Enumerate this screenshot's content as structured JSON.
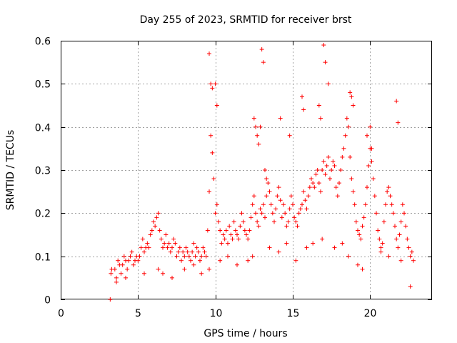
{
  "chart_data": {
    "type": "scatter",
    "title": "Day 255 of 2023, SRMTID for receiver brst",
    "xlabel": "GPS time / hours",
    "ylabel": "SRMTID / TECUs",
    "xlim": [
      0,
      24
    ],
    "ylim": [
      0,
      0.6
    ],
    "x_ticks": [
      0,
      5,
      10,
      15,
      20
    ],
    "x_tick_labels": [
      "0",
      "5",
      "10",
      "15",
      "20"
    ],
    "y_ticks": [
      0,
      0.1,
      0.2,
      0.3,
      0.4,
      0.5,
      0.6
    ],
    "y_tick_labels": [
      "0",
      "0.1",
      "0.2",
      "0.3",
      "0.4",
      "0.5",
      "0.6"
    ],
    "grid": true,
    "marker": "+",
    "color": "#ff0000",
    "series": [
      {
        "name": "SRMTID",
        "x": [
          3.2,
          3.25,
          3.3,
          3.5,
          3.6,
          3.7,
          3.8,
          3.9,
          4.0,
          4.1,
          4.2,
          4.3,
          4.4,
          4.5,
          4.6,
          4.7,
          4.8,
          4.9,
          5.0,
          5.1,
          5.2,
          5.3,
          5.4,
          5.5,
          5.6,
          5.7,
          5.8,
          5.9,
          6.0,
          6.1,
          6.2,
          6.3,
          6.4,
          6.5,
          6.6,
          6.7,
          6.8,
          6.9,
          7.0,
          7.1,
          7.2,
          7.3,
          7.4,
          7.5,
          7.6,
          7.7,
          7.8,
          7.9,
          8.0,
          8.1,
          8.2,
          8.3,
          8.4,
          8.5,
          8.6,
          8.7,
          8.8,
          8.9,
          9.0,
          9.1,
          9.2,
          9.3,
          9.4,
          9.5,
          9.6,
          9.7,
          9.8,
          9.9,
          10.0,
          10.1,
          10.2,
          10.3,
          10.4,
          10.5,
          10.6,
          10.7,
          10.8,
          10.9,
          11.0,
          11.1,
          11.2,
          11.3,
          11.4,
          11.5,
          11.6,
          11.7,
          11.8,
          11.9,
          12.0,
          12.1,
          12.2,
          12.3,
          12.4,
          12.5,
          12.6,
          12.7,
          12.8,
          12.9,
          13.0,
          13.1,
          13.2,
          13.3,
          13.4,
          13.5,
          13.6,
          13.7,
          13.8,
          13.9,
          14.0,
          14.1,
          14.2,
          14.3,
          14.4,
          14.5,
          14.6,
          14.7,
          14.8,
          14.9,
          15.0,
          15.1,
          15.2,
          15.3,
          15.4,
          15.5,
          15.6,
          15.7,
          15.8,
          15.9,
          16.0,
          16.1,
          16.2,
          16.3,
          16.4,
          16.5,
          16.6,
          16.7,
          16.8,
          16.9,
          17.0,
          17.1,
          17.2,
          17.3,
          17.4,
          17.5,
          17.6,
          17.7,
          17.8,
          17.9,
          18.0,
          18.1,
          18.2,
          18.3,
          18.4,
          18.5,
          18.6,
          18.7,
          18.8,
          18.9,
          19.0,
          19.1,
          19.2,
          19.3,
          19.4,
          19.5,
          19.6,
          19.7,
          19.8,
          19.9,
          20.0,
          20.1,
          20.2,
          20.3,
          20.4,
          20.5,
          20.6,
          20.7,
          20.8,
          20.9,
          21.0,
          21.1,
          21.2,
          21.3,
          21.4,
          21.5,
          21.6,
          21.7,
          21.8,
          21.9,
          22.0,
          22.1,
          22.2,
          22.3,
          22.4,
          22.5,
          22.6,
          22.7,
          22.8,
          9.6,
          9.7,
          9.8,
          10.0,
          10.1,
          12.5,
          12.6,
          12.7,
          12.8,
          12.9,
          13.0,
          13.1,
          14.2,
          14.8,
          15.6,
          15.7,
          16.7,
          16.8,
          17.0,
          17.1,
          17.3,
          18.7,
          18.8,
          18.9,
          19.8,
          20.0,
          20.1,
          21.7,
          21.8,
          13.2,
          13.3,
          3.6,
          4.2,
          5.4,
          6.3,
          6.6,
          7.2,
          8.0,
          8.6,
          9.1,
          9.6,
          10.3,
          10.8,
          11.4,
          12.1,
          12.4,
          13.5,
          14.1,
          14.6,
          15.2,
          15.9,
          16.3,
          16.9,
          17.7,
          18.2,
          18.6,
          19.2,
          19.5,
          20.7,
          21.2,
          22.0,
          22.6
        ],
        "y": [
          0.0,
          0.06,
          0.07,
          0.07,
          0.05,
          0.09,
          0.08,
          0.06,
          0.08,
          0.1,
          0.09,
          0.07,
          0.09,
          0.1,
          0.11,
          0.08,
          0.09,
          0.1,
          0.09,
          0.1,
          0.12,
          0.14,
          0.11,
          0.12,
          0.13,
          0.12,
          0.15,
          0.16,
          0.18,
          0.17,
          0.19,
          0.2,
          0.16,
          0.14,
          0.12,
          0.13,
          0.15,
          0.12,
          0.13,
          0.11,
          0.12,
          0.14,
          0.13,
          0.1,
          0.11,
          0.12,
          0.09,
          0.11,
          0.1,
          0.12,
          0.11,
          0.1,
          0.09,
          0.11,
          0.13,
          0.1,
          0.12,
          0.11,
          0.09,
          0.1,
          0.12,
          0.11,
          0.1,
          0.16,
          0.25,
          0.38,
          0.34,
          0.28,
          0.2,
          0.22,
          0.18,
          0.16,
          0.13,
          0.15,
          0.14,
          0.16,
          0.13,
          0.17,
          0.15,
          0.14,
          0.18,
          0.16,
          0.15,
          0.14,
          0.17,
          0.2,
          0.18,
          0.16,
          0.15,
          0.14,
          0.16,
          0.19,
          0.22,
          0.24,
          0.2,
          0.18,
          0.17,
          0.21,
          0.2,
          0.22,
          0.19,
          0.24,
          0.27,
          0.25,
          0.22,
          0.2,
          0.18,
          0.21,
          0.24,
          0.26,
          0.23,
          0.19,
          0.22,
          0.2,
          0.17,
          0.18,
          0.21,
          0.24,
          0.22,
          0.19,
          0.18,
          0.17,
          0.2,
          0.21,
          0.22,
          0.25,
          0.23,
          0.21,
          0.24,
          0.26,
          0.28,
          0.27,
          0.26,
          0.29,
          0.3,
          0.27,
          0.25,
          0.3,
          0.32,
          0.29,
          0.31,
          0.33,
          0.28,
          0.3,
          0.32,
          0.31,
          0.26,
          0.24,
          0.27,
          0.3,
          0.33,
          0.35,
          0.38,
          0.42,
          0.4,
          0.33,
          0.28,
          0.25,
          0.22,
          0.18,
          0.16,
          0.15,
          0.14,
          0.17,
          0.19,
          0.22,
          0.26,
          0.31,
          0.35,
          0.32,
          0.28,
          0.24,
          0.2,
          0.16,
          0.14,
          0.12,
          0.13,
          0.18,
          0.22,
          0.25,
          0.26,
          0.24,
          0.22,
          0.2,
          0.17,
          0.14,
          0.12,
          0.15,
          0.18,
          0.22,
          0.2,
          0.17,
          0.14,
          0.12,
          0.1,
          0.11,
          0.09,
          0.57,
          0.5,
          0.49,
          0.5,
          0.45,
          0.42,
          0.4,
          0.38,
          0.36,
          0.4,
          0.58,
          0.55,
          0.42,
          0.38,
          0.47,
          0.44,
          0.45,
          0.42,
          0.59,
          0.55,
          0.5,
          0.48,
          0.47,
          0.45,
          0.38,
          0.4,
          0.35,
          0.46,
          0.41,
          0.3,
          0.28,
          0.04,
          0.05,
          0.06,
          0.07,
          0.06,
          0.05,
          0.07,
          0.08,
          0.06,
          0.07,
          0.09,
          0.1,
          0.08,
          0.09,
          0.1,
          0.12,
          0.11,
          0.13,
          0.09,
          0.12,
          0.13,
          0.14,
          0.12,
          0.13,
          0.1,
          0.08,
          0.07,
          0.11,
          0.1,
          0.09,
          0.03
        ]
      }
    ]
  }
}
